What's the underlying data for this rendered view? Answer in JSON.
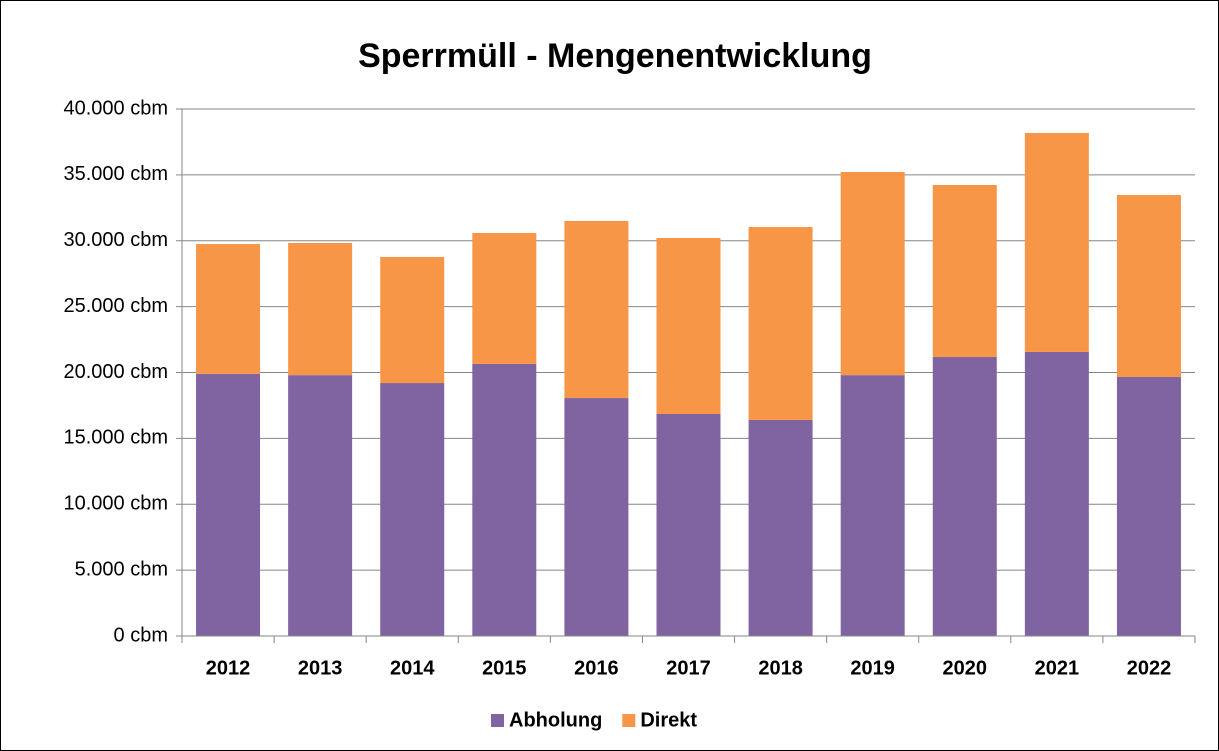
{
  "chart_data": {
    "type": "stacked_bar",
    "title": "Sperrmüll - Mengenentwicklung",
    "categories": [
      "2012",
      "2013",
      "2014",
      "2015",
      "2016",
      "2017",
      "2018",
      "2019",
      "2020",
      "2021",
      "2022"
    ],
    "series": [
      {
        "name": "Abholung",
        "color": "#8064a2",
        "values": [
          19900,
          19800,
          19200,
          20650,
          18060,
          16850,
          16400,
          19800,
          21180,
          21560,
          19660
        ]
      },
      {
        "name": "Direkt",
        "color": "#f79646",
        "values": [
          9850,
          10030,
          9570,
          9940,
          13440,
          13360,
          14640,
          15420,
          13050,
          16620,
          13810
        ]
      }
    ],
    "ylim": [
      0,
      40000
    ],
    "yticks": [
      {
        "value": 0,
        "label": "0 cbm"
      },
      {
        "value": 5000,
        "label": "5.000 cbm"
      },
      {
        "value": 10000,
        "label": "10.000 cbm"
      },
      {
        "value": 15000,
        "label": "15.000 cbm"
      },
      {
        "value": 20000,
        "label": "20.000 cbm"
      },
      {
        "value": 25000,
        "label": "25.000 cbm"
      },
      {
        "value": 30000,
        "label": "30.000 cbm"
      },
      {
        "value": 35000,
        "label": "35.000 cbm"
      },
      {
        "value": 40000,
        "label": "40.000 cbm"
      }
    ],
    "grid": true,
    "legend": "bottom"
  }
}
